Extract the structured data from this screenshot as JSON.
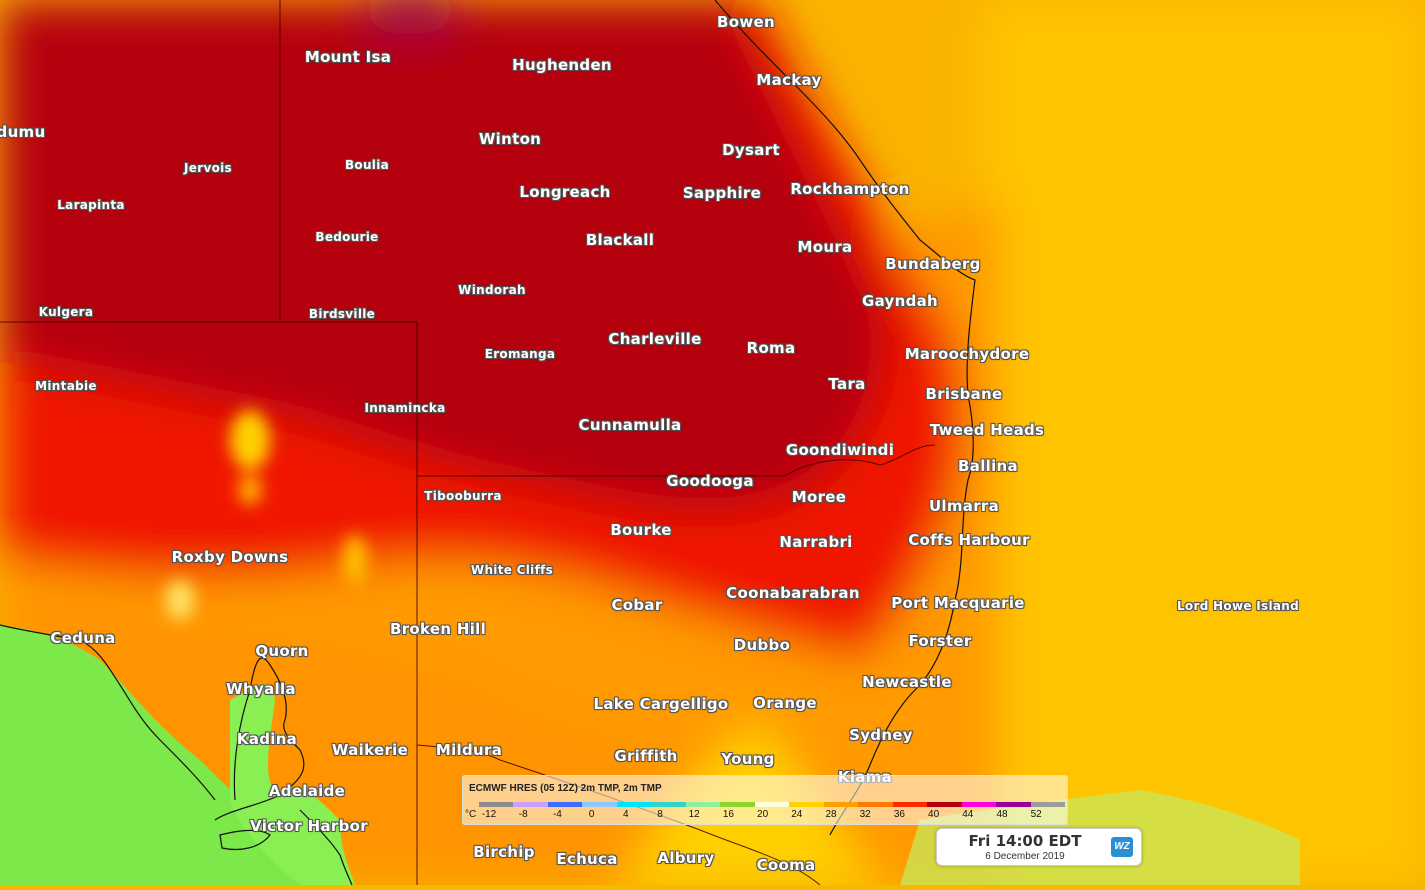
{
  "colors": {
    "deep_heat": "#a8000a",
    "heat": "#e00000",
    "orange": "#ff8a00",
    "yellow": "#ffc000",
    "green": "#7cea4c",
    "border": "#3a0000"
  },
  "places": [
    {
      "name": "Mount Isa",
      "size": "lg"
    },
    {
      "name": "Hughenden",
      "size": "lg"
    },
    {
      "name": "Bowen",
      "size": "lg"
    },
    {
      "name": "Mackay",
      "size": "lg"
    },
    {
      "name": "dumu",
      "size": "lg"
    },
    {
      "name": "Winton",
      "size": "lg"
    },
    {
      "name": "Dysart",
      "size": "lg"
    },
    {
      "name": "Jervois",
      "size": "sm"
    },
    {
      "name": "Boulia",
      "size": "sm"
    },
    {
      "name": "Longreach",
      "size": "lg"
    },
    {
      "name": "Sapphire",
      "size": "lg"
    },
    {
      "name": "Rockhampton",
      "size": "lg"
    },
    {
      "name": "Larapinta",
      "size": "sm"
    },
    {
      "name": "Bedourie",
      "size": "sm"
    },
    {
      "name": "Blackall",
      "size": "lg"
    },
    {
      "name": "Moura",
      "size": "lg"
    },
    {
      "name": "Bundaberg",
      "size": "lg"
    },
    {
      "name": "Windorah",
      "size": "sm"
    },
    {
      "name": "Gayndah",
      "size": "lg"
    },
    {
      "name": "Kulgera",
      "size": "sm"
    },
    {
      "name": "Birdsville",
      "size": "sm"
    },
    {
      "name": "Charleville",
      "size": "lg"
    },
    {
      "name": "Roma",
      "size": "lg"
    },
    {
      "name": "Eromanga",
      "size": "sm"
    },
    {
      "name": "Maroochydore",
      "size": "lg"
    },
    {
      "name": "Tara",
      "size": "lg"
    },
    {
      "name": "Mintabie",
      "size": "sm"
    },
    {
      "name": "Brisbane",
      "size": "lg"
    },
    {
      "name": "Innamincka",
      "size": "sm"
    },
    {
      "name": "Cunnamulla",
      "size": "lg"
    },
    {
      "name": "Tweed Heads",
      "size": "lg"
    },
    {
      "name": "Goondiwindi",
      "size": "lg"
    },
    {
      "name": "Ballina",
      "size": "lg"
    },
    {
      "name": "Goodooga",
      "size": "lg"
    },
    {
      "name": "Tibooburra",
      "size": "sm"
    },
    {
      "name": "Moree",
      "size": "lg"
    },
    {
      "name": "Ulmarra",
      "size": "lg"
    },
    {
      "name": "Bourke",
      "size": "lg"
    },
    {
      "name": "Narrabri",
      "size": "lg"
    },
    {
      "name": "Coffs Harbour",
      "size": "lg"
    },
    {
      "name": "Roxby Downs",
      "size": "lg"
    },
    {
      "name": "White Cliffs",
      "size": "sm"
    },
    {
      "name": "Coonabarabran",
      "size": "lg"
    },
    {
      "name": "Cobar",
      "size": "lg"
    },
    {
      "name": "Port Macquarie",
      "size": "lg"
    },
    {
      "name": "Lord Howe Island",
      "size": "sm"
    },
    {
      "name": "Broken Hill",
      "size": "lg"
    },
    {
      "name": "Ceduna",
      "size": "lg"
    },
    {
      "name": "Forster",
      "size": "lg"
    },
    {
      "name": "Dubbo",
      "size": "lg"
    },
    {
      "name": "Quorn",
      "size": "lg"
    },
    {
      "name": "Newcastle",
      "size": "lg"
    },
    {
      "name": "Whyalla",
      "size": "lg"
    },
    {
      "name": "Lake Cargelligo",
      "size": "lg"
    },
    {
      "name": "Orange",
      "size": "lg"
    },
    {
      "name": "Sydney",
      "size": "lg"
    },
    {
      "name": "Kadina",
      "size": "lg"
    },
    {
      "name": "Waikerie",
      "size": "lg"
    },
    {
      "name": "Mildura",
      "size": "lg"
    },
    {
      "name": "Griffith",
      "size": "lg"
    },
    {
      "name": "Young",
      "size": "lg"
    },
    {
      "name": "Kiama",
      "size": "lg"
    },
    {
      "name": "Adelaide",
      "size": "lg"
    },
    {
      "name": "Victor Harbor",
      "size": "lg"
    },
    {
      "name": "Birchip",
      "size": "lg"
    },
    {
      "name": "Echuca",
      "size": "lg"
    },
    {
      "name": "Albury",
      "size": "lg"
    },
    {
      "name": "Cooma",
      "size": "lg"
    }
  ],
  "legend": {
    "title": "ECMWF HRES (05 12Z) 2m TMP, 2m TMP",
    "unit": "°C",
    "ticks": [
      "-12",
      "-8",
      "-4",
      "0",
      "4",
      "8",
      "12",
      "16",
      "20",
      "24",
      "28",
      "32",
      "36",
      "40",
      "44",
      "48",
      "52"
    ],
    "scale_colors": [
      "#8c8c8c",
      "#8c8c8c",
      "#c9a0ff",
      "#c9a0ff",
      "#3f6bff",
      "#3f6bff",
      "#8fc7ff",
      "#8fc7ff",
      "#00e5ff",
      "#00e5ff",
      "#2fd6c8",
      "#2fd6c8",
      "#8cf0a0",
      "#8cf0a0",
      "#8ed62c",
      "#8ed62c",
      "#ffffe0",
      "#ffffe0",
      "#ffd200",
      "#ffd200",
      "#ffa000",
      "#ffa000",
      "#ff7a00",
      "#ff7a00",
      "#ff2a00",
      "#ff2a00",
      "#b00010",
      "#b00010",
      "#ff00e0",
      "#ff00e0",
      "#9a009a",
      "#9a009a",
      "#9c9c9c",
      "#9c9c9c"
    ]
  },
  "time": {
    "main": "Fri 14:00 EDT",
    "date": "6 December 2019",
    "logo": "WZ"
  }
}
